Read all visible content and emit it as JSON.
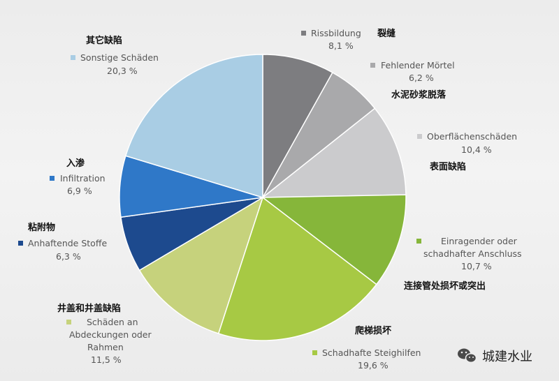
{
  "chart_data": {
    "type": "pie",
    "slices": [
      {
        "label": "Rissbildung",
        "cn": "裂缝",
        "value": 8.1,
        "value_text": "8,1 %",
        "color": "#7d7d80"
      },
      {
        "label": "Fehlender Mörtel",
        "cn": "水泥砂浆脱落",
        "value": 6.2,
        "value_text": "6,2 %",
        "color": "#a9a9ab"
      },
      {
        "label": "Oberflächenschäden",
        "cn": "表面缺陷",
        "value": 10.4,
        "value_text": "10,4 %",
        "color": "#cbcbcd"
      },
      {
        "label": "Einragender oder schadhafter Anschluss",
        "label_lines": [
          "Einragender oder",
          "schadhafter Anschluss"
        ],
        "cn": "连接管处损坏或突出",
        "value": 10.7,
        "value_text": "10,7 %",
        "color": "#86b63a"
      },
      {
        "label": "Schadhafte Steighilfen",
        "cn": "爬梯损坏",
        "value": 19.6,
        "value_text": "19,6 %",
        "color": "#a7c944"
      },
      {
        "label": "Schäden an Abdeckungen oder Rahmen",
        "label_lines": [
          "Schäden an",
          "Abdeckungen oder",
          "Rahmen"
        ],
        "cn": "井盖和井盖缺陷",
        "value": 11.5,
        "value_text": "11,5 %",
        "color": "#c6d27c"
      },
      {
        "label": "Anhaftende Stoffe",
        "cn": "粘附物",
        "value": 6.3,
        "value_text": "6,3 %",
        "color": "#1d4a8e"
      },
      {
        "label": "Infiltration",
        "cn": "入渗",
        "value": 6.9,
        "value_text": "6,9 %",
        "color": "#2f78c8"
      },
      {
        "label": "Sonstige Schäden",
        "cn": "其它缺陷",
        "value": 20.3,
        "value_text": "20,3 %",
        "color": "#a9cde4"
      }
    ]
  },
  "watermark": {
    "text": "城建水业",
    "icon": "wechat-icon"
  }
}
